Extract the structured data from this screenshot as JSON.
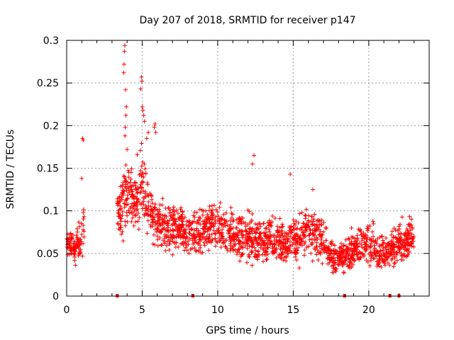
{
  "chart_data": {
    "type": "scatter",
    "title": "Day 207 of 2018, SRMTID for receiver p147",
    "xlabel": "GPS time / hours",
    "ylabel": "SRMTID / TECUs",
    "xlim": [
      0,
      24
    ],
    "ylim": [
      0,
      0.3
    ],
    "xticks": [
      0,
      5,
      10,
      15,
      20
    ],
    "yticks": [
      0,
      0.05,
      0.1,
      0.15,
      0.2,
      0.25,
      0.3
    ],
    "ytick_labels": [
      "0",
      "0.05",
      "0.1",
      "0.15",
      "0.2",
      "0.25",
      "0.3"
    ],
    "grid": true,
    "series_color": "#ff0000",
    "marker": "plus",
    "gap_markers_x": [
      3.35,
      8.35,
      18.4,
      21.4,
      22.0
    ],
    "profile": [
      [
        0.0,
        0.065,
        0.01
      ],
      [
        0.3,
        0.06,
        0.012
      ],
      [
        0.6,
        0.055,
        0.012
      ],
      [
        0.9,
        0.07,
        0.02
      ],
      [
        1.1,
        0.085,
        0.03
      ],
      [
        3.5,
        0.1,
        0.02
      ],
      [
        3.8,
        0.12,
        0.035
      ],
      [
        4.1,
        0.13,
        0.03
      ],
      [
        4.5,
        0.11,
        0.025
      ],
      [
        4.9,
        0.13,
        0.035
      ],
      [
        5.2,
        0.12,
        0.03
      ],
      [
        5.6,
        0.1,
        0.025
      ],
      [
        6.0,
        0.085,
        0.022
      ],
      [
        6.5,
        0.08,
        0.02
      ],
      [
        7.0,
        0.08,
        0.02
      ],
      [
        7.5,
        0.08,
        0.018
      ],
      [
        8.0,
        0.075,
        0.02
      ],
      [
        8.5,
        0.07,
        0.02
      ],
      [
        9.0,
        0.075,
        0.02
      ],
      [
        9.5,
        0.085,
        0.02
      ],
      [
        10.0,
        0.08,
        0.022
      ],
      [
        10.5,
        0.075,
        0.02
      ],
      [
        11.0,
        0.07,
        0.02
      ],
      [
        11.5,
        0.07,
        0.022
      ],
      [
        12.0,
        0.07,
        0.022
      ],
      [
        12.5,
        0.065,
        0.02
      ],
      [
        13.0,
        0.065,
        0.02
      ],
      [
        13.5,
        0.065,
        0.02
      ],
      [
        14.0,
        0.065,
        0.02
      ],
      [
        14.5,
        0.06,
        0.018
      ],
      [
        15.0,
        0.065,
        0.02
      ],
      [
        15.5,
        0.07,
        0.02
      ],
      [
        16.0,
        0.08,
        0.022
      ],
      [
        16.5,
        0.075,
        0.022
      ],
      [
        17.0,
        0.065,
        0.02
      ],
      [
        17.5,
        0.045,
        0.015
      ],
      [
        18.0,
        0.045,
        0.015
      ],
      [
        18.5,
        0.05,
        0.015
      ],
      [
        19.0,
        0.055,
        0.018
      ],
      [
        19.5,
        0.06,
        0.018
      ],
      [
        20.0,
        0.06,
        0.02
      ],
      [
        20.5,
        0.055,
        0.018
      ],
      [
        21.0,
        0.05,
        0.015
      ],
      [
        21.5,
        0.055,
        0.018
      ],
      [
        22.0,
        0.06,
        0.018
      ],
      [
        22.5,
        0.065,
        0.018
      ],
      [
        22.8,
        0.07,
        0.015
      ]
    ],
    "outliers": [
      [
        1.05,
        0.185
      ],
      [
        1.1,
        0.183
      ],
      [
        1.0,
        0.138
      ],
      [
        3.85,
        0.294
      ],
      [
        3.82,
        0.287
      ],
      [
        3.8,
        0.272
      ],
      [
        3.78,
        0.262
      ],
      [
        3.9,
        0.242
      ],
      [
        3.95,
        0.222
      ],
      [
        3.92,
        0.212
      ],
      [
        3.88,
        0.198
      ],
      [
        3.86,
        0.188
      ],
      [
        4.0,
        0.172
      ],
      [
        4.95,
        0.257
      ],
      [
        4.98,
        0.252
      ],
      [
        4.9,
        0.243
      ],
      [
        5.0,
        0.222
      ],
      [
        5.05,
        0.218
      ],
      [
        5.1,
        0.212
      ],
      [
        5.15,
        0.205
      ],
      [
        5.4,
        0.192
      ],
      [
        5.3,
        0.185
      ],
      [
        5.8,
        0.198
      ],
      [
        5.85,
        0.202
      ],
      [
        5.9,
        0.192
      ],
      [
        12.4,
        0.165
      ],
      [
        12.3,
        0.155
      ],
      [
        14.8,
        0.143
      ],
      [
        16.3,
        0.125
      ]
    ],
    "segments": [
      [
        0.0,
        1.15
      ],
      [
        3.35,
        23.0
      ]
    ]
  }
}
